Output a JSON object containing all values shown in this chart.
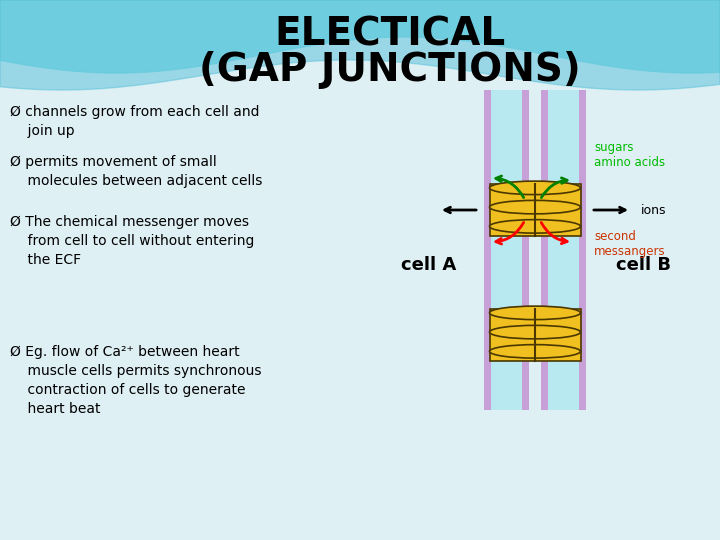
{
  "title_line1": "ELECTICAL",
  "title_line2": "(GAP JUNCTIONS)",
  "title_color": "#000000",
  "title_fontsize": 28,
  "bg_color": "#dff0f5",
  "bullet_color": "#000000",
  "bullet_fontsize": 11,
  "cell_bg": "#b8e8f0",
  "cell_membrane_color": "#c8a0d8",
  "gap_junction_color": "#f0c020",
  "gap_junction_outline": "#4a3800",
  "label_cell_a": "cell A",
  "label_cell_b": "cell B",
  "label_sugars": "sugars\namino acids",
  "label_ions": "ions",
  "label_second": "second\nmessangers",
  "label_color_green": "#00bb00",
  "label_color_red": "#cc3300",
  "label_color_black": "#000000",
  "wave_color1": "#7dd8e8",
  "wave_color2": "#55c0d8"
}
